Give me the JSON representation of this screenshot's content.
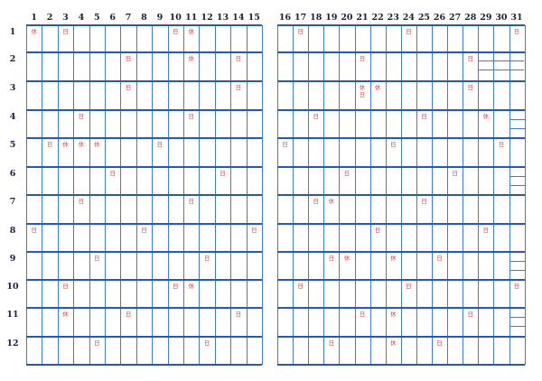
{
  "colors": {
    "grid_line": "#3f7ad6",
    "row_line": "#2457c5",
    "mark_text": "#e0453c",
    "label_text": "#1d1d3a"
  },
  "left_panel": {
    "days": [
      "1",
      "2",
      "3",
      "4",
      "5",
      "6",
      "7",
      "8",
      "9",
      "10",
      "11",
      "12",
      "13",
      "14",
      "15"
    ],
    "months": [
      "1",
      "2",
      "3",
      "4",
      "5",
      "6",
      "7",
      "8",
      "9",
      "10",
      "11",
      "12"
    ],
    "marks": {
      "1-1": "休",
      "1-3": "日",
      "1-10": "日",
      "1-11": "休",
      "2-7": "日",
      "2-11": "休",
      "2-14": "日",
      "3-7": "日",
      "3-14": "日",
      "4-4": "日",
      "4-11": "日",
      "5-2": "日",
      "5-3": "休",
      "5-4": "休",
      "5-5": "休",
      "5-9": "日",
      "6-6": "日",
      "6-13": "日",
      "7-4": "日",
      "7-11": "日",
      "8-1": "日",
      "8-8": "日",
      "8-15": "日",
      "9-5": "日",
      "9-12": "日",
      "10-3": "日",
      "10-10": "日",
      "10-11": "休",
      "11-3": "休",
      "11-7": "日",
      "11-14": "日",
      "12-5": "日",
      "12-12": "日"
    }
  },
  "right_panel": {
    "days": [
      "16",
      "17",
      "18",
      "19",
      "20",
      "21",
      "22",
      "23",
      "24",
      "25",
      "26",
      "27",
      "28",
      "29",
      "30",
      "31"
    ],
    "marks": {
      "1-17": "日",
      "1-24": "日",
      "1-31": "日",
      "2-21": "日",
      "2-28": "日",
      "3-21": "休\n日",
      "3-22": "休",
      "3-28": "日",
      "4-18": "日",
      "4-25": "日",
      "4-29": "休",
      "5-16": "日",
      "5-23": "日",
      "5-30": "日",
      "6-20": "日",
      "6-27": "日",
      "7-18": "日",
      "7-19": "休",
      "7-25": "日",
      "8-22": "日",
      "8-29": "日",
      "9-19": "日",
      "9-20": "休",
      "9-23": "休",
      "9-26": "日",
      "10-17": "日",
      "10-24": "日",
      "10-31": "日",
      "11-21": "日",
      "11-23": "休",
      "11-28": "日",
      "12-19": "日",
      "12-23": "休",
      "12-26": "日"
    }
  }
}
